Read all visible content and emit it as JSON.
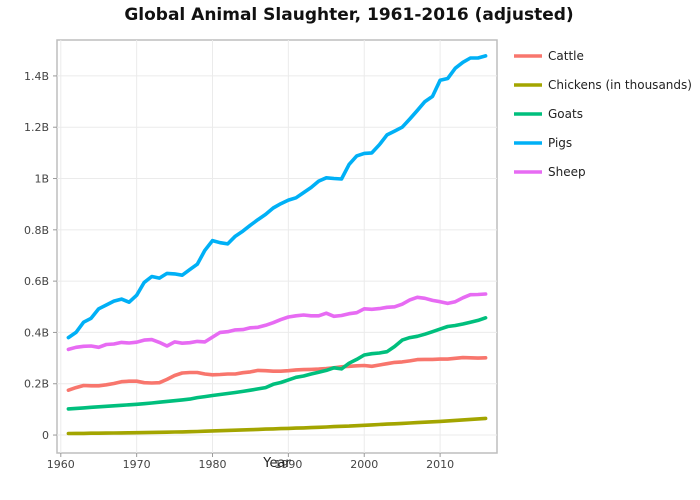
{
  "chart_data": {
    "type": "line",
    "title": "Global Animal Slaughter, 1961-2016 (adjusted)",
    "xlabel": "Year",
    "ylabel": "",
    "xlim": [
      1959.5,
      2017.5
    ],
    "ylim": [
      -70000000,
      1540000000
    ],
    "x_ticks": [
      1960,
      1970,
      1980,
      1990,
      2000,
      2010
    ],
    "y_ticks": [
      {
        "value": 0,
        "label": "0"
      },
      {
        "value": 200000000,
        "label": "0.2B"
      },
      {
        "value": 400000000,
        "label": "0.4B"
      },
      {
        "value": 600000000,
        "label": "0.6B"
      },
      {
        "value": 800000000,
        "label": "0.8B"
      },
      {
        "value": 1000000000,
        "label": "1B"
      },
      {
        "value": 1200000000,
        "label": "1.2B"
      },
      {
        "value": 1400000000,
        "label": "1.4B"
      }
    ],
    "legend_position": "right",
    "x": [
      1961,
      1962,
      1963,
      1964,
      1965,
      1966,
      1967,
      1968,
      1969,
      1970,
      1971,
      1972,
      1973,
      1974,
      1975,
      1976,
      1977,
      1978,
      1979,
      1980,
      1981,
      1982,
      1983,
      1984,
      1985,
      1986,
      1987,
      1988,
      1989,
      1990,
      1991,
      1992,
      1993,
      1994,
      1995,
      1996,
      1997,
      1998,
      1999,
      2000,
      2001,
      2002,
      2003,
      2004,
      2005,
      2006,
      2007,
      2008,
      2009,
      2010,
      2011,
      2012,
      2013,
      2014,
      2015,
      2016
    ],
    "series": [
      {
        "name": "Cattle",
        "color": "#F8766D",
        "values": [
          175000000,
          185000000,
          193000000,
          192000000,
          192000000,
          196000000,
          201000000,
          208000000,
          210000000,
          210000000,
          204000000,
          203000000,
          204000000,
          217000000,
          232000000,
          242000000,
          244000000,
          244000000,
          238000000,
          235000000,
          236000000,
          238000000,
          238000000,
          243000000,
          246000000,
          252000000,
          251000000,
          249000000,
          249000000,
          251000000,
          254000000,
          255000000,
          256000000,
          257000000,
          259000000,
          262000000,
          266000000,
          268000000,
          270000000,
          271000000,
          268000000,
          273000000,
          278000000,
          283000000,
          285000000,
          289000000,
          294000000,
          295000000,
          295000000,
          296000000,
          296000000,
          299000000,
          302000000,
          301000000,
          300000000,
          301000000
        ]
      },
      {
        "name": "Chickens (in thousands)",
        "color": "#A3A500",
        "values": [
          6000000,
          6300000,
          6600000,
          7000000,
          7300000,
          7700000,
          8100000,
          8500000,
          8900000,
          9300000,
          9700000,
          10200000,
          10700000,
          11200000,
          11700000,
          12300000,
          13000000,
          14000000,
          15000000,
          16000000,
          17000000,
          18000000,
          19000000,
          20000000,
          21000000,
          22000000,
          23000000,
          24000000,
          25000000,
          26000000,
          27000000,
          28000000,
          29000000,
          30000000,
          31500000,
          33000000,
          34000000,
          35000000,
          36500000,
          38000000,
          39500000,
          41000000,
          42500000,
          44000000,
          45500000,
          47000000,
          48500000,
          50000000,
          51500000,
          53000000,
          55000000,
          57000000,
          59000000,
          61000000,
          63000000,
          65000000
        ]
      },
      {
        "name": "Goats",
        "color": "#00BF7D",
        "values": [
          102000000,
          104000000,
          106000000,
          108000000,
          110000000,
          112000000,
          114000000,
          116000000,
          118000000,
          120000000,
          122000000,
          125000000,
          128000000,
          131000000,
          134000000,
          137000000,
          140000000,
          146000000,
          150000000,
          154000000,
          158000000,
          162000000,
          166000000,
          170000000,
          175000000,
          180000000,
          185000000,
          198000000,
          205000000,
          215000000,
          225000000,
          230000000,
          238000000,
          245000000,
          252000000,
          262000000,
          258000000,
          280000000,
          295000000,
          312000000,
          317000000,
          320000000,
          325000000,
          345000000,
          370000000,
          380000000,
          385000000,
          393000000,
          403000000,
          413000000,
          423000000,
          427000000,
          433000000,
          440000000,
          447000000,
          457000000
        ]
      },
      {
        "name": "Pigs",
        "color": "#00B0F6",
        "values": [
          380000000,
          400000000,
          440000000,
          455000000,
          492000000,
          507000000,
          522000000,
          530000000,
          518000000,
          545000000,
          595000000,
          618000000,
          612000000,
          630000000,
          628000000,
          623000000,
          645000000,
          666000000,
          720000000,
          758000000,
          750000000,
          745000000,
          775000000,
          795000000,
          818000000,
          840000000,
          860000000,
          885000000,
          902000000,
          916000000,
          925000000,
          945000000,
          965000000,
          990000000,
          1003000000,
          1000000000,
          998000000,
          1055000000,
          1088000000,
          1098000000,
          1100000000,
          1132000000,
          1170000000,
          1185000000,
          1200000000,
          1232000000,
          1265000000,
          1300000000,
          1320000000,
          1383000000,
          1390000000,
          1430000000,
          1453000000,
          1470000000,
          1470000000,
          1478000000
        ]
      },
      {
        "name": "Sheep",
        "color": "#E76BF3",
        "values": [
          334000000,
          342000000,
          346000000,
          347000000,
          342000000,
          353000000,
          355000000,
          361000000,
          359000000,
          362000000,
          370000000,
          372000000,
          361000000,
          347000000,
          363000000,
          358000000,
          360000000,
          365000000,
          363000000,
          382000000,
          400000000,
          403000000,
          410000000,
          411000000,
          418000000,
          420000000,
          428000000,
          438000000,
          450000000,
          460000000,
          465000000,
          468000000,
          465000000,
          465000000,
          475000000,
          463000000,
          466000000,
          473000000,
          477000000,
          492000000,
          490000000,
          493000000,
          498000000,
          500000000,
          510000000,
          527000000,
          537000000,
          533000000,
          525000000,
          520000000,
          513000000,
          520000000,
          535000000,
          547000000,
          548000000,
          550000000
        ]
      }
    ]
  }
}
